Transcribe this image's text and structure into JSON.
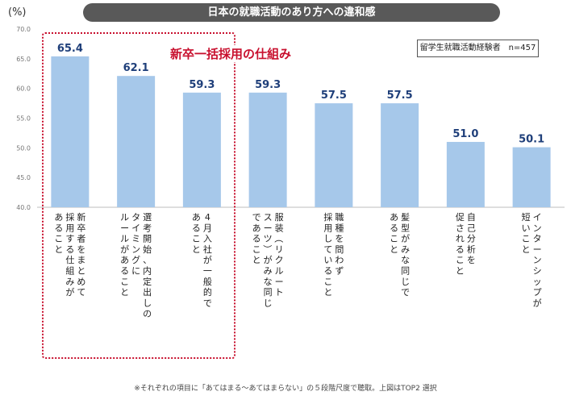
{
  "header": {
    "title": "日本の就職活動のあり方への違和感",
    "unit": "(%)"
  },
  "legend_box": "留学生就職活動経験者　n=457",
  "highlight": {
    "label": "新卒一括採用の仕組み"
  },
  "footnote": "※それぞれの項目に「あてはまる～あてはまらない」の５段階尺度で聴取。上図はTOP2 選択",
  "colors": {
    "bar": "#a6c8ea",
    "value_text": "#1f3f7a",
    "highlight": "#c8102e",
    "title_bg": "#595959"
  },
  "chart_data": {
    "type": "bar",
    "title": "日本の就職活動のあり方への違和感",
    "ylabel": "(%)",
    "ylim": [
      40,
      70
    ],
    "yticks": [
      40.0,
      45.0,
      50.0,
      55.0,
      60.0,
      65.0,
      70.0
    ],
    "grid": false,
    "categories": [
      [
        "新卒者をまとめて",
        "採用する仕組みが",
        "あること"
      ],
      [
        "選考開始、内定出しの",
        "タイミングに",
        "ルールがあること"
      ],
      [
        "4月入社が一般的で",
        "あること"
      ],
      [
        "服装（リクルート",
        "スーツ）がみな同じ",
        "であること"
      ],
      [
        "職種を問わず",
        "採用していること"
      ],
      [
        "髪型がみな同じで",
        "あること"
      ],
      [
        "自己分析を",
        "促されること"
      ],
      [
        "インターンシップが",
        "短いこと"
      ]
    ],
    "values": [
      65.4,
      62.1,
      59.3,
      59.3,
      57.5,
      57.5,
      51.0,
      50.1
    ],
    "value_labels": [
      "65.4",
      "62.1",
      "59.3",
      "59.3",
      "57.5",
      "57.5",
      "51.0",
      "50.1"
    ]
  }
}
